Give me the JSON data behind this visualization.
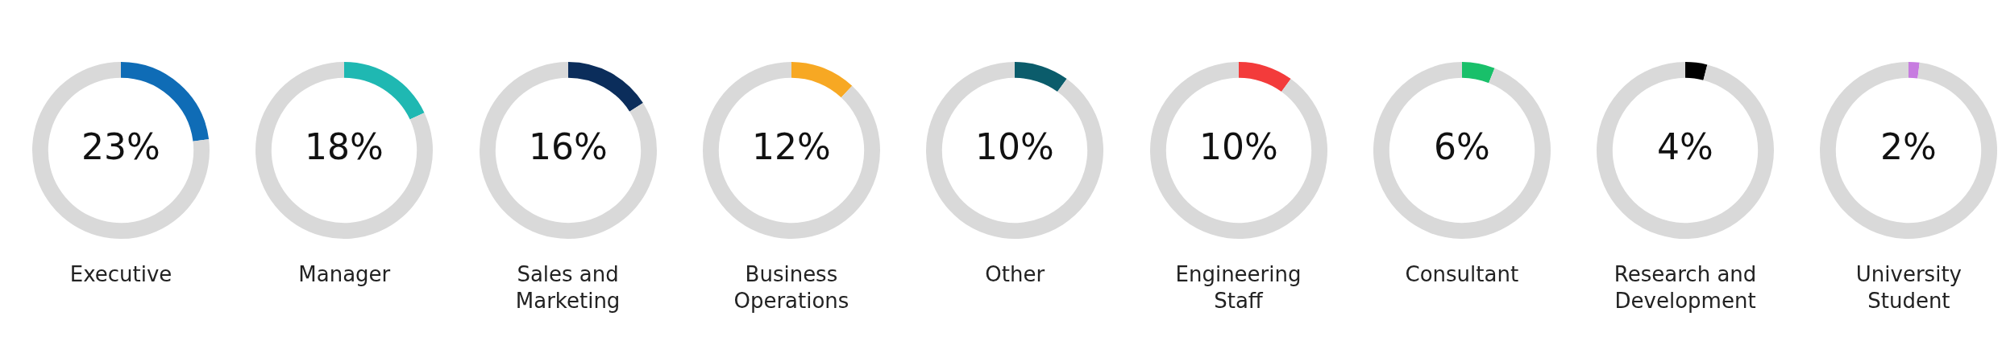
{
  "chart_data": [
    {
      "type": "donut",
      "title": "Executive",
      "categories": [
        null,
        null
      ],
      "values": [
        23,
        77
      ],
      "colors": [
        "#0f6cb6",
        "#d9d9d9"
      ],
      "value_labels": [
        "23%",
        null
      ]
    },
    {
      "type": "donut",
      "title": "Manager",
      "categories": [
        null,
        null
      ],
      "values": [
        18,
        82
      ],
      "colors": [
        "#1fb8b2",
        "#d9d9d9"
      ],
      "value_labels": [
        "18%",
        null
      ]
    },
    {
      "type": "donut",
      "title": "Sales and Marketing",
      "categories": [
        null,
        null
      ],
      "values": [
        16,
        84
      ],
      "colors": [
        "#0b2d5b",
        "#d9d9d9"
      ],
      "value_labels": [
        "16%",
        null
      ]
    },
    {
      "type": "donut",
      "title": "Business Operations",
      "categories": [
        null,
        null
      ],
      "values": [
        12,
        88
      ],
      "colors": [
        "#f7a823",
        "#d9d9d9"
      ],
      "value_labels": [
        "12%",
        null
      ]
    },
    {
      "type": "donut",
      "title": "Other",
      "categories": [
        null,
        null
      ],
      "values": [
        10,
        90
      ],
      "colors": [
        "#0b5c6b",
        "#d9d9d9"
      ],
      "value_labels": [
        "10%",
        null
      ]
    },
    {
      "type": "donut",
      "title": "Engineering Staff",
      "categories": [
        null,
        null
      ],
      "values": [
        10,
        90
      ],
      "colors": [
        "#f33b3b",
        "#d9d9d9"
      ],
      "value_labels": [
        "10%",
        null
      ]
    },
    {
      "type": "donut",
      "title": "Consultant",
      "categories": [
        null,
        null
      ],
      "values": [
        6,
        94
      ],
      "colors": [
        "#19c06a",
        "#d9d9d9"
      ],
      "value_labels": [
        "6%",
        null
      ]
    },
    {
      "type": "donut",
      "title": "Research and Development",
      "categories": [
        null,
        null
      ],
      "values": [
        4,
        96
      ],
      "colors": [
        "#000000",
        "#d9d9d9"
      ],
      "value_labels": [
        "4%",
        null
      ]
    },
    {
      "type": "donut",
      "title": "University Student",
      "categories": [
        null,
        null
      ],
      "values": [
        2,
        98
      ],
      "colors": [
        "#c77ce0",
        "#d9d9d9"
      ],
      "value_labels": [
        "2%",
        null
      ]
    }
  ]
}
